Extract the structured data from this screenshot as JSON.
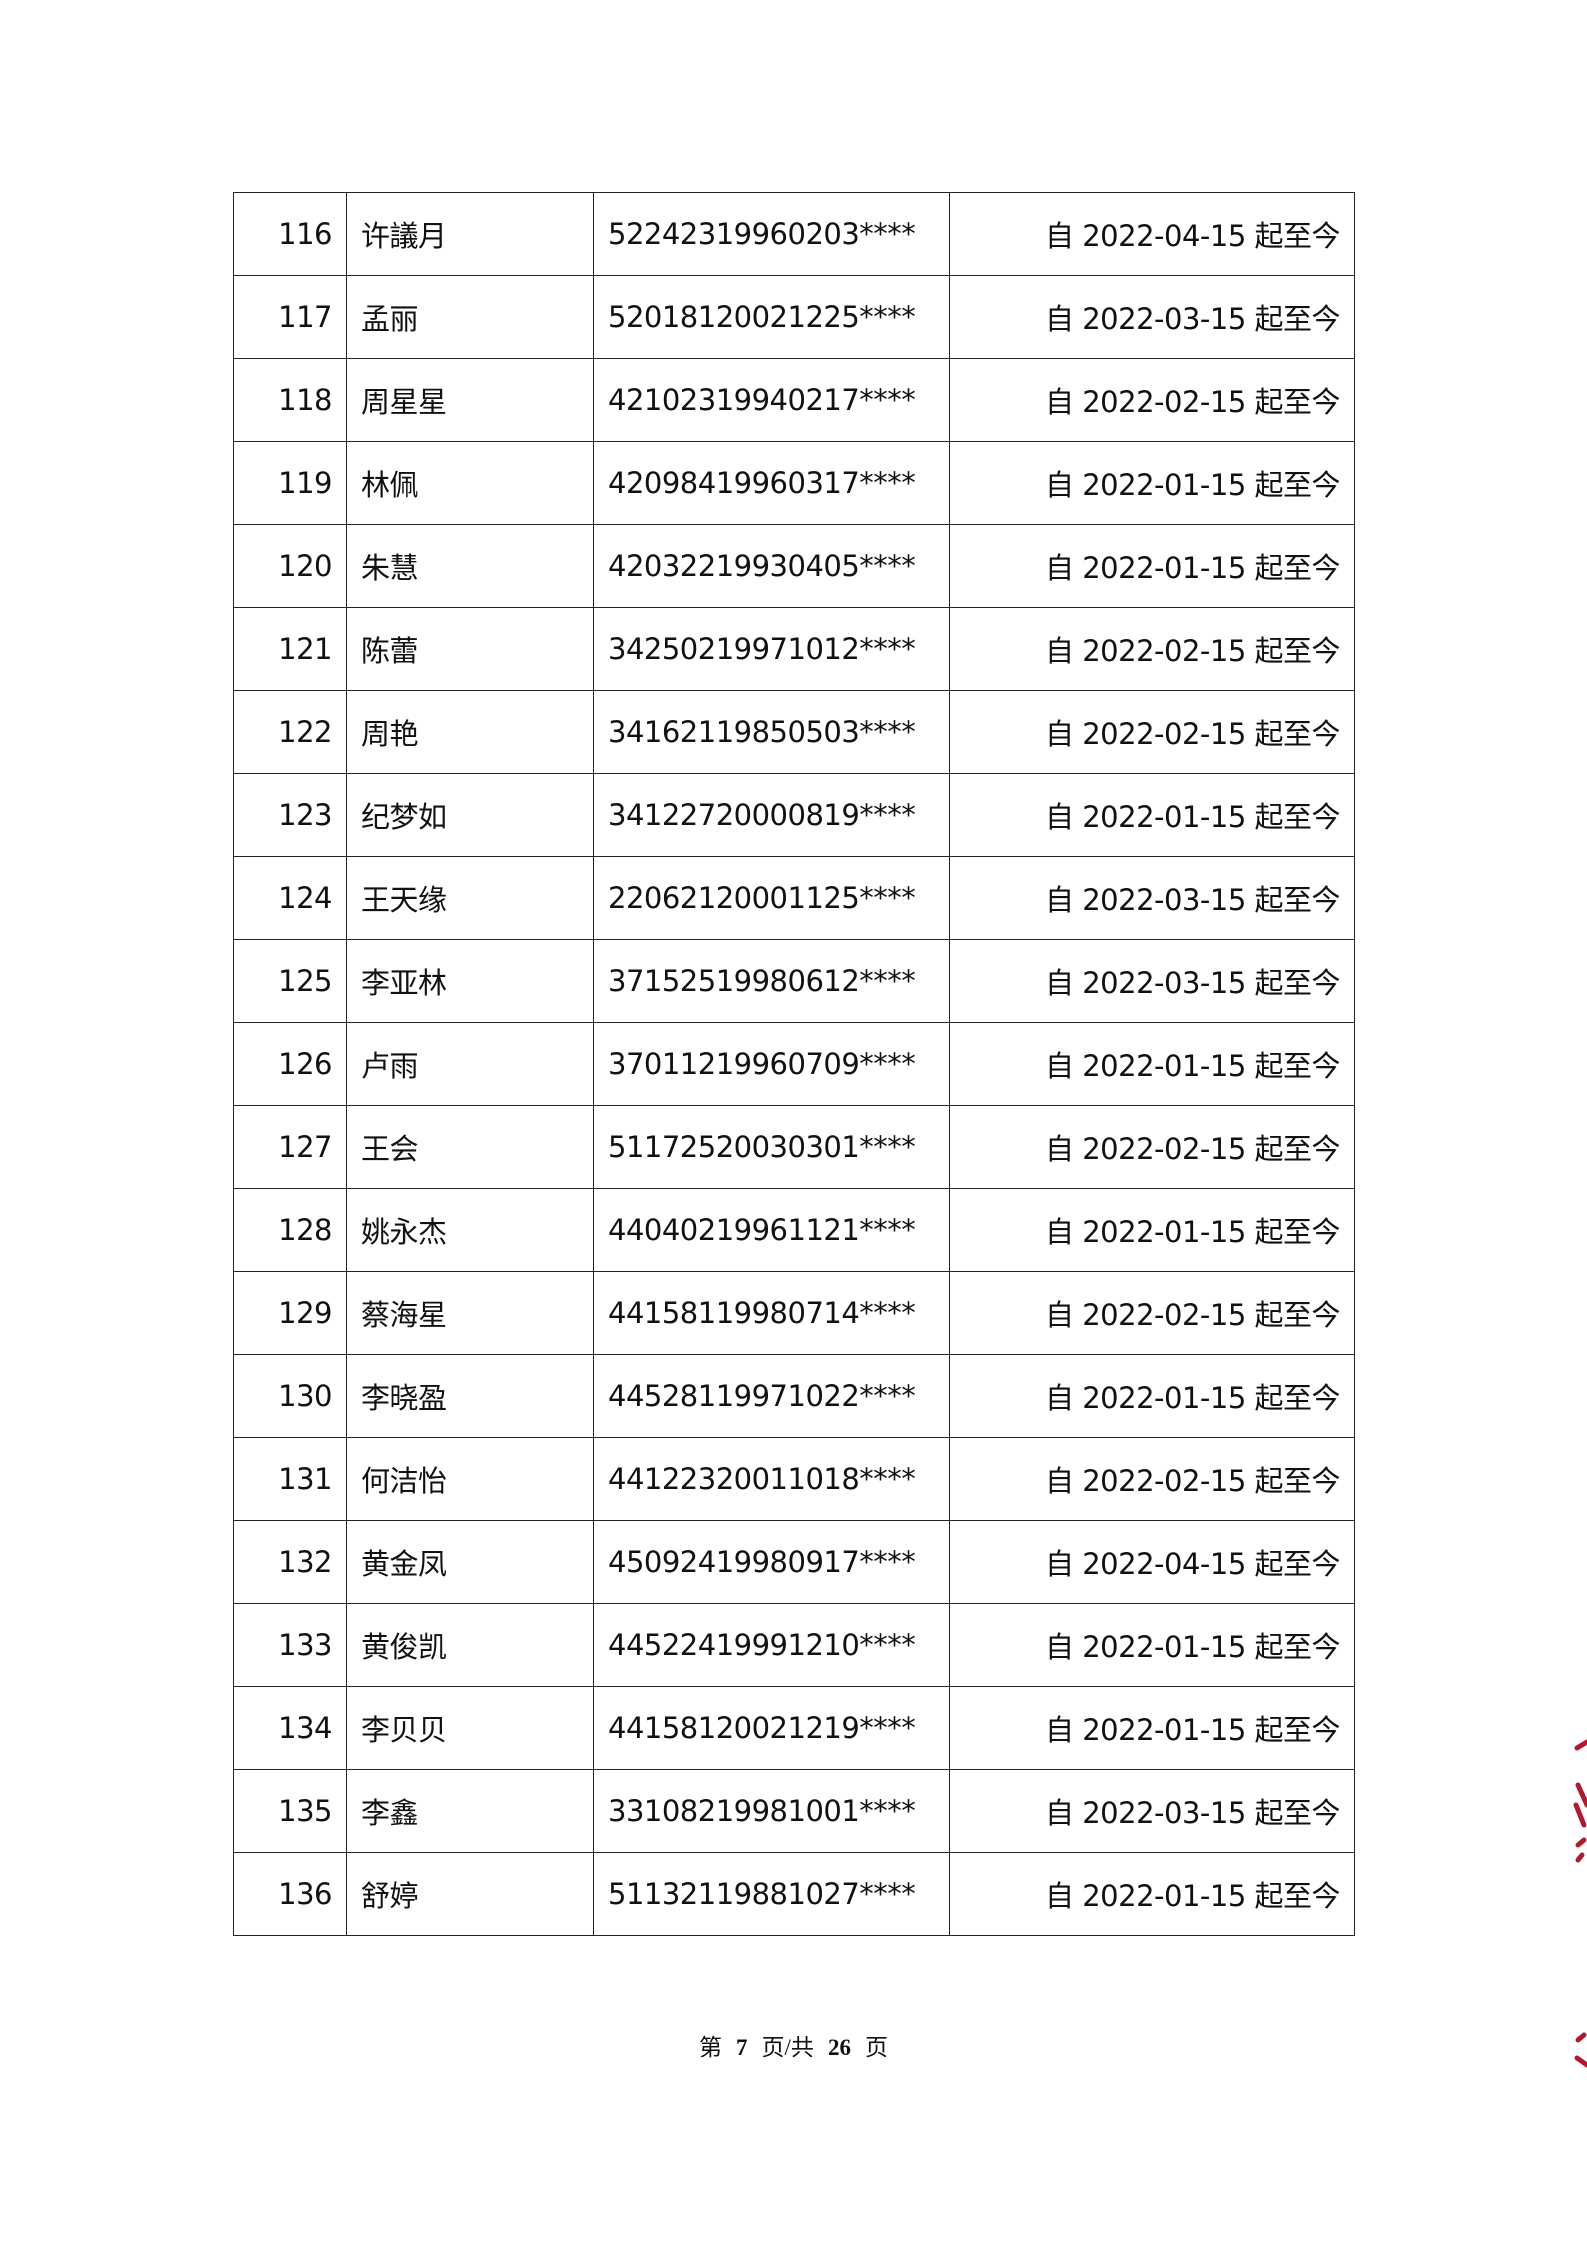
{
  "rows": [
    {
      "no": "116",
      "name": "许議月",
      "id": "52242319960203****",
      "period": "自 2022-04-15 起至今"
    },
    {
      "no": "117",
      "name": "孟丽",
      "id": "52018120021225****",
      "period": "自 2022-03-15 起至今"
    },
    {
      "no": "118",
      "name": "周星星",
      "id": "42102319940217****",
      "period": "自 2022-02-15 起至今"
    },
    {
      "no": "119",
      "name": "林佩",
      "id": "42098419960317****",
      "period": "自 2022-01-15 起至今"
    },
    {
      "no": "120",
      "name": "朱慧",
      "id": "42032219930405****",
      "period": "自 2022-01-15 起至今"
    },
    {
      "no": "121",
      "name": "陈蕾",
      "id": "34250219971012****",
      "period": "自 2022-02-15 起至今"
    },
    {
      "no": "122",
      "name": "周艳",
      "id": "34162119850503****",
      "period": "自 2022-02-15 起至今"
    },
    {
      "no": "123",
      "name": "纪梦如",
      "id": "34122720000819****",
      "period": "自 2022-01-15 起至今"
    },
    {
      "no": "124",
      "name": "王天缘",
      "id": "22062120001125****",
      "period": "自 2022-03-15 起至今"
    },
    {
      "no": "125",
      "name": "李亚林",
      "id": "37152519980612****",
      "period": "自 2022-03-15 起至今"
    },
    {
      "no": "126",
      "name": "卢雨",
      "id": "37011219960709****",
      "period": "自 2022-01-15 起至今"
    },
    {
      "no": "127",
      "name": "王会",
      "id": "51172520030301****",
      "period": "自 2022-02-15 起至今"
    },
    {
      "no": "128",
      "name": "姚永杰",
      "id": "44040219961121****",
      "period": "自 2022-01-15 起至今"
    },
    {
      "no": "129",
      "name": "蔡海星",
      "id": "44158119980714****",
      "period": "自 2022-02-15 起至今"
    },
    {
      "no": "130",
      "name": "李晓盈",
      "id": "44528119971022****",
      "period": "自 2022-01-15 起至今"
    },
    {
      "no": "131",
      "name": "何洁怡",
      "id": "44122320011018****",
      "period": "自 2022-02-15 起至今"
    },
    {
      "no": "132",
      "name": "黄金凤",
      "id": "45092419980917****",
      "period": "自 2022-04-15 起至今"
    },
    {
      "no": "133",
      "name": "黄俊凯",
      "id": "44522419991210****",
      "period": "自 2022-01-15 起至今"
    },
    {
      "no": "134",
      "name": "李贝贝",
      "id": "44158120021219****",
      "period": "自 2022-01-15 起至今"
    },
    {
      "no": "135",
      "name": "李鑫",
      "id": "33108219981001****",
      "period": "自 2022-03-15 起至今"
    },
    {
      "no": "136",
      "name": "舒婷",
      "id": "51132119881027****",
      "period": "自 2022-01-15 起至今"
    }
  ],
  "footer": {
    "prefix": "第",
    "current_page": "7",
    "middle": "页/共",
    "total_pages": "26",
    "suffix": "页"
  },
  "seal": {
    "color": "#b5182a"
  }
}
